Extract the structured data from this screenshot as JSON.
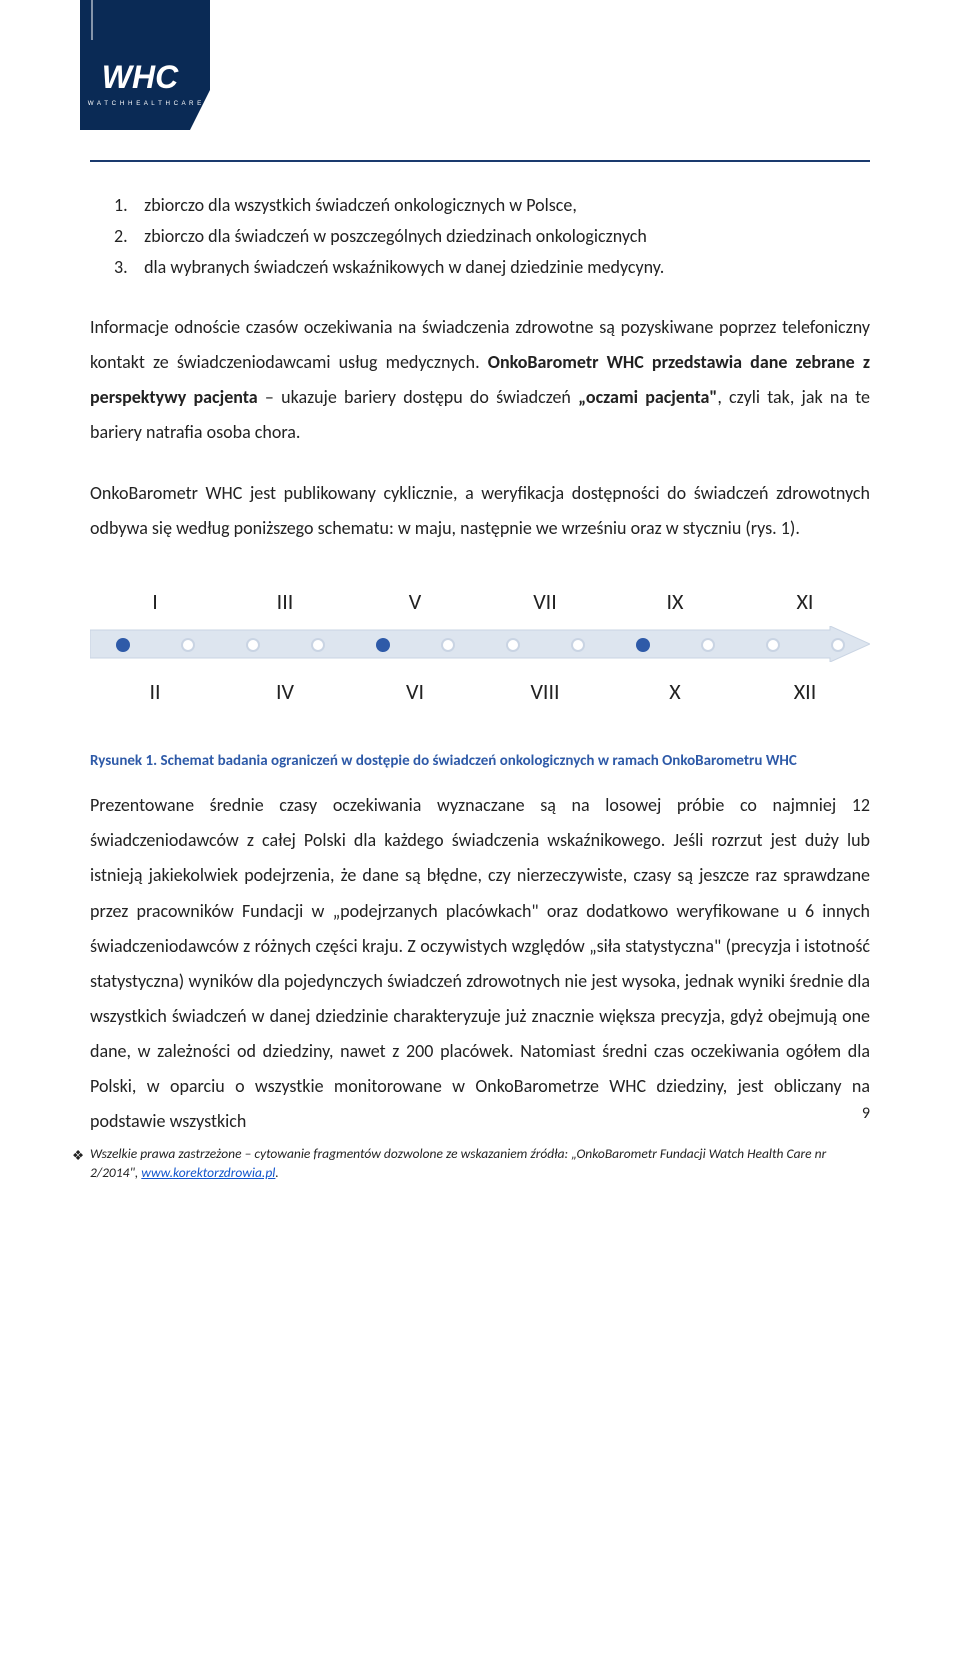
{
  "logo": {
    "brand_top": "WHC",
    "brand_bottom": "WATCHHEALTHCARE",
    "bg_color": "#0a2a55",
    "accent_color": "#ffffff"
  },
  "list": {
    "items": [
      {
        "num": "1.",
        "text": "zbiorczo dla wszystkich świadczeń onkologicznych w Polsce,"
      },
      {
        "num": "2.",
        "text": "zbiorczo dla świadczeń w poszczególnych dziedzinach onkologicznych"
      },
      {
        "num": "3.",
        "text": "dla wybranych świadczeń wskaźnikowych w danej dziedzinie medycyny."
      }
    ]
  },
  "para1": {
    "pre": "Informacje odnoście czasów oczekiwania na świadczenia zdrowotne są pozyskiwane poprzez telefoniczny kontakt ze świadczeniodawcami usług medycznych. ",
    "bold1": "OnkoBarometr WHC przedstawia dane zebrane z perspektywy pacjenta",
    "mid": " – ukazuje bariery dostępu do świadczeń ",
    "bold2": "„oczami pacjenta\"",
    "post": ", czyli tak, jak na te bariery natrafia osoba chora."
  },
  "para2": "OnkoBarometr WHC jest publikowany cyklicznie, a weryfikacja dostępności do świadczeń zdrowotnych odbywa się według poniższego schematu: w maju, następnie we wrześniu oraz w styczniu (rys. 1).",
  "timeline": {
    "top_labels": [
      "I",
      "III",
      "V",
      "VII",
      "IX",
      "XI"
    ],
    "bottom_labels": [
      "II",
      "IV",
      "VI",
      "VIII",
      "X",
      "XII"
    ],
    "dots": [
      true,
      false,
      false,
      false,
      true,
      false,
      false,
      false,
      true,
      false,
      false,
      false
    ],
    "arrow_fill": "#dde5ef",
    "arrow_stroke": "#c9d4e3",
    "dot_filled_color": "#2e5aa8",
    "dot_hollow_border": "#c9d4e3"
  },
  "caption": {
    "label": "Rysunek 1.",
    "text": "Schemat badania ograniczeń w dostępie do świadczeń onkologicznych w ramach OnkoBarometru WHC"
  },
  "para3": "Prezentowane średnie czasy oczekiwania wyznaczane są na losowej próbie co najmniej 12 świadczeniodawców z całej Polski dla każdego świadczenia wskaźnikowego. Jeśli rozrzut jest duży lub istnieją jakiekolwiek podejrzenia, że dane są błędne, czy nierzeczywiste, czasy są jeszcze raz sprawdzane przez pracowników Fundacji w „podejrzanych placówkach\" oraz dodatkowo weryfikowane u 6 innych świadczeniodawców z różnych części kraju. Z oczywistych względów „siła statystyczna\" (precyzja i istotność statystyczna) wyników dla pojedynczych świadczeń zdrowotnych nie jest wysoka, jednak wyniki średnie dla wszystkich świadczeń w danej dziedzinie charakteryzuje już znacznie większa precyzja, gdyż obejmują one dane, w zależności od dziedziny, nawet z 200 placówek. Natomiast średni czas oczekiwania ogółem dla Polski, w oparciu o wszystkie monitorowane w OnkoBarometrze WHC dziedziny, jest obliczany na podstawie wszystkich",
  "page_number": "9",
  "footer": {
    "bullet": "❖",
    "text_pre": "Wszelkie prawa zastrzeżone – cytowanie fragmentów dozwolone ze wskazaniem źródła: „OnkoBarometr Fundacji Watch Health Care nr 2/2014\", ",
    "link_text": "www.korektorzdrowia.pl",
    "text_post": "."
  }
}
